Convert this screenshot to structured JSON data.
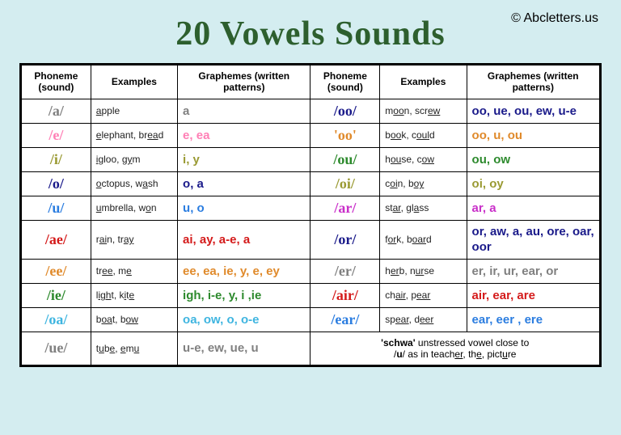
{
  "copyright": "© Abcletters.us",
  "title": "20 Vowels Sounds",
  "colors": {
    "gray": "#808080",
    "pink": "#ff7fb5",
    "olive": "#9a9a33",
    "darkblue": "#1a1a8a",
    "blue": "#2b7de0",
    "red": "#d41a1a",
    "orange": "#e08a2b",
    "green": "#2d8a2d",
    "skyblue": "#3fb5e0",
    "magenta": "#c92fc9"
  },
  "headers": {
    "phoneme": "Phoneme (sound)",
    "examples": "Examples",
    "graphemes": "Graphemes (written patterns)"
  },
  "left": [
    {
      "phoneme": "/a/",
      "color": "gray",
      "examples": "<u>a</u>pple",
      "graphemes": "a"
    },
    {
      "phoneme": "/e/",
      "color": "pink",
      "examples": "<u>e</u>lephant, br<u>ea</u>d",
      "graphemes": "e, ea"
    },
    {
      "phoneme": "/i/",
      "color": "olive",
      "examples": "<u>i</u>gloo, g<u>y</u>m",
      "graphemes": "i, y"
    },
    {
      "phoneme": "/o/",
      "color": "darkblue",
      "examples": "<u>o</u>ctopus, w<u>a</u>sh",
      "graphemes": "o, a"
    },
    {
      "phoneme": "/u/",
      "color": "blue",
      "examples": "<u>u</u>mbrella, w<u>o</u>n",
      "graphemes": "u, o"
    },
    {
      "phoneme": "/ae/",
      "color": "red",
      "examples": "r<u>ai</u>n, tr<u>ay</u>",
      "graphemes": "ai, ay, a-e, a"
    },
    {
      "phoneme": "/ee/",
      "color": "orange",
      "examples": "tr<u>ee</u>, m<u>e</u>",
      "graphemes": "ee, ea, ie, y, e, ey"
    },
    {
      "phoneme": "/ie/",
      "color": "green",
      "examples": "l<u>igh</u>t, k<u>i</u>t<u>e</u>",
      "graphemes": "igh, i-e, y, i ,ie"
    },
    {
      "phoneme": "/oa/",
      "color": "skyblue",
      "examples": "b<u>oa</u>t, b<u>ow</u>",
      "graphemes": "oa, ow, o, o-e"
    },
    {
      "phoneme": "/ue/",
      "color": "gray",
      "examples": "t<u>u</u>b<u>e</u>, <u>e</u>m<u>u</u>",
      "graphemes": "u-e, ew, ue, u"
    }
  ],
  "right": [
    {
      "phoneme": "/oo/",
      "color": "darkblue",
      "examples": "m<u>oo</u>n, scr<u>ew</u>",
      "graphemes": "oo, ue, ou, ew, u-e"
    },
    {
      "phoneme": "'oo'",
      "color": "orange",
      "examples": "b<u>oo</u>k, c<u>oul</u>d",
      "graphemes": "oo, u, ou"
    },
    {
      "phoneme": "/ou/",
      "color": "green",
      "examples": "h<u>ou</u>se, c<u>ow</u>",
      "graphemes": "ou, ow"
    },
    {
      "phoneme": "/oi/",
      "color": "olive",
      "examples": "c<u>oi</u>n, b<u>oy</u>",
      "graphemes": "oi, oy"
    },
    {
      "phoneme": "/ar/",
      "color": "magenta",
      "examples": "st<u>ar</u>, gl<u>a</u>ss",
      "graphemes": "ar, a"
    },
    {
      "phoneme": "/or/",
      "color": "darkblue",
      "examples": "f<u>or</u>k, b<u>oar</u>d",
      "graphemes": "or, aw, a, au, ore, oar, oor"
    },
    {
      "phoneme": "/er/",
      "color": "gray",
      "examples": "h<u>er</u>b, n<u>ur</u>se",
      "graphemes": "er, ir, ur, ear, or"
    },
    {
      "phoneme": "/air/",
      "color": "red",
      "examples": "ch<u>air</u>, p<u>ear</u>",
      "graphemes": "air, ear, are"
    },
    {
      "phoneme": "/ear/",
      "color": "blue",
      "examples": "sp<u>ear</u>, d<u>eer</u>",
      "graphemes": "ear, eer , ere"
    }
  ],
  "schwa": "<b>'schwa'</b> unstressed vowel close to<br>/<b>u</b>/ as in teach<u>er</u>, th<u>e</u>, pict<u>u</u>re"
}
